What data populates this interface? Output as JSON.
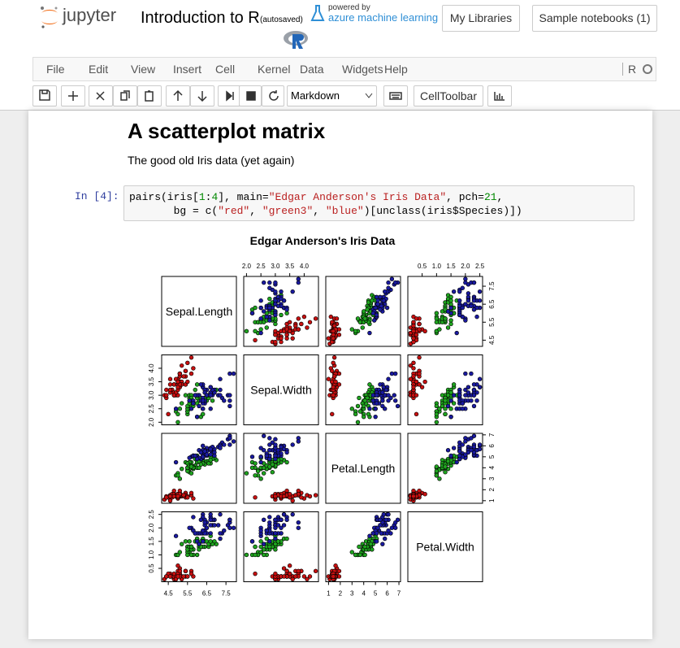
{
  "header": {
    "logo_text": "jupyter",
    "title": "Introduction to R",
    "autosaved": "(autosaved)",
    "powered_by": "powered by",
    "azure": "azure machine learning",
    "buttons": [
      "My Libraries",
      "Sample notebooks (1)"
    ]
  },
  "menu": {
    "items": [
      "File",
      "Edit",
      "View",
      "Insert",
      "Cell",
      "Kernel",
      "Data",
      "Widgets",
      "Help"
    ],
    "kernel": "R"
  },
  "toolbar": {
    "cell_type": "Markdown",
    "celltoolbar": "CellToolbar"
  },
  "cells": {
    "heading": "A scatterplot matrix",
    "text": "The good old Iris data (yet again)",
    "prompt": "In [4]:",
    "code": [
      [
        [
          "pairs(iris[",
          "plain"
        ],
        [
          "1",
          "num"
        ],
        [
          ":",
          "plain"
        ],
        [
          "4",
          "num"
        ],
        [
          "], main=",
          "plain"
        ],
        [
          "\"Edgar Anderson's Iris Data\"",
          "str"
        ],
        [
          ", pch=",
          "plain"
        ],
        [
          "21",
          "num"
        ],
        [
          ",",
          "plain"
        ]
      ],
      [
        [
          "       bg = c(",
          "plain"
        ],
        [
          "\"red\"",
          "str"
        ],
        [
          ", ",
          "plain"
        ],
        [
          "\"green3\"",
          "str"
        ],
        [
          ", ",
          "plain"
        ],
        [
          "\"blue\"",
          "str"
        ],
        [
          ")[unclass(iris$Species)])",
          "plain"
        ]
      ]
    ]
  },
  "chart_data": {
    "type": "scatter_matrix",
    "title": "Edgar Anderson's Iris Data",
    "variables": [
      {
        "name": "Sepal.Length",
        "lim": [
          4.156,
          8.044
        ],
        "ticks": [
          4.5,
          5.5,
          6.5,
          7.5
        ]
      },
      {
        "name": "Sepal.Width",
        "lim": [
          1.904,
          4.496
        ],
        "ticks": [
          {
            "value": 2,
            "label": "2.0"
          },
          2.5,
          {
            "value": 3,
            "label": "3.0"
          },
          3.5,
          {
            "value": 4,
            "label": "4.0"
          }
        ]
      },
      {
        "name": "Petal.Length",
        "lim": [
          0.764,
          7.136
        ],
        "ticks": [
          1,
          2,
          3,
          4,
          5,
          6,
          7
        ]
      },
      {
        "name": "Petal.Width",
        "lim": [
          0.004,
          2.596
        ],
        "ticks": [
          0.5,
          {
            "value": 1,
            "label": "1.0"
          },
          1.5,
          {
            "value": 2,
            "label": "2.0"
          },
          2.5
        ]
      }
    ],
    "series": [
      {
        "color": "#c81010",
        "values": [
          [
            5.1,
            3.5,
            1.4,
            0.2
          ],
          [
            4.9,
            3.0,
            1.4,
            0.2
          ],
          [
            4.7,
            3.2,
            1.3,
            0.2
          ],
          [
            4.6,
            3.1,
            1.5,
            0.2
          ],
          [
            5.0,
            3.6,
            1.4,
            0.2
          ],
          [
            5.4,
            3.9,
            1.7,
            0.4
          ],
          [
            4.6,
            3.4,
            1.4,
            0.3
          ],
          [
            5.0,
            3.4,
            1.5,
            0.2
          ],
          [
            4.4,
            2.9,
            1.4,
            0.2
          ],
          [
            4.9,
            3.1,
            1.5,
            0.1
          ],
          [
            5.4,
            3.7,
            1.5,
            0.2
          ],
          [
            4.8,
            3.4,
            1.6,
            0.2
          ],
          [
            4.8,
            3.0,
            1.4,
            0.1
          ],
          [
            4.3,
            3.0,
            1.1,
            0.1
          ],
          [
            5.8,
            4.0,
            1.2,
            0.2
          ],
          [
            5.7,
            4.4,
            1.5,
            0.4
          ],
          [
            5.4,
            3.9,
            1.3,
            0.4
          ],
          [
            5.1,
            3.5,
            1.4,
            0.3
          ],
          [
            5.7,
            3.8,
            1.7,
            0.3
          ],
          [
            5.1,
            3.8,
            1.5,
            0.3
          ],
          [
            5.4,
            3.4,
            1.7,
            0.2
          ],
          [
            5.1,
            3.7,
            1.5,
            0.4
          ],
          [
            4.6,
            3.6,
            1.0,
            0.2
          ],
          [
            5.1,
            3.3,
            1.7,
            0.5
          ],
          [
            4.8,
            3.4,
            1.9,
            0.2
          ],
          [
            5.0,
            3.0,
            1.6,
            0.2
          ],
          [
            5.0,
            3.4,
            1.6,
            0.4
          ],
          [
            5.2,
            3.5,
            1.5,
            0.2
          ],
          [
            5.2,
            3.4,
            1.4,
            0.2
          ],
          [
            4.7,
            3.2,
            1.6,
            0.2
          ],
          [
            4.8,
            3.1,
            1.6,
            0.2
          ],
          [
            5.4,
            3.4,
            1.5,
            0.4
          ],
          [
            5.2,
            4.1,
            1.5,
            0.1
          ],
          [
            5.5,
            4.2,
            1.4,
            0.2
          ],
          [
            4.9,
            3.1,
            1.5,
            0.2
          ],
          [
            5.0,
            3.2,
            1.2,
            0.2
          ],
          [
            5.5,
            3.5,
            1.3,
            0.2
          ],
          [
            4.9,
            3.6,
            1.4,
            0.1
          ],
          [
            4.4,
            3.0,
            1.3,
            0.2
          ],
          [
            5.1,
            3.4,
            1.5,
            0.2
          ],
          [
            5.0,
            3.5,
            1.3,
            0.3
          ],
          [
            4.5,
            2.3,
            1.3,
            0.3
          ],
          [
            4.4,
            3.2,
            1.3,
            0.2
          ],
          [
            5.0,
            3.5,
            1.6,
            0.6
          ],
          [
            5.1,
            3.8,
            1.9,
            0.4
          ],
          [
            4.8,
            3.0,
            1.4,
            0.3
          ],
          [
            5.1,
            3.8,
            1.6,
            0.2
          ],
          [
            4.6,
            3.2,
            1.4,
            0.2
          ],
          [
            5.3,
            3.7,
            1.5,
            0.2
          ],
          [
            5.0,
            3.3,
            1.4,
            0.2
          ]
        ]
      },
      {
        "color": "#1fa51f",
        "values": [
          [
            7.0,
            3.2,
            4.7,
            1.4
          ],
          [
            6.4,
            3.2,
            4.5,
            1.5
          ],
          [
            6.9,
            3.1,
            4.9,
            1.5
          ],
          [
            5.5,
            2.3,
            4.0,
            1.3
          ],
          [
            6.5,
            2.8,
            4.6,
            1.5
          ],
          [
            5.7,
            2.8,
            4.5,
            1.3
          ],
          [
            6.3,
            3.3,
            4.7,
            1.6
          ],
          [
            4.9,
            2.4,
            3.3,
            1.0
          ],
          [
            6.6,
            2.9,
            4.6,
            1.3
          ],
          [
            5.2,
            2.7,
            3.9,
            1.4
          ],
          [
            5.0,
            2.0,
            3.5,
            1.0
          ],
          [
            5.9,
            3.0,
            4.2,
            1.5
          ],
          [
            6.0,
            2.2,
            4.0,
            1.0
          ],
          [
            6.1,
            2.9,
            4.7,
            1.4
          ],
          [
            5.6,
            2.9,
            3.6,
            1.3
          ],
          [
            6.7,
            3.1,
            4.4,
            1.4
          ],
          [
            5.6,
            3.0,
            4.5,
            1.5
          ],
          [
            5.8,
            2.7,
            4.1,
            1.0
          ],
          [
            6.2,
            2.2,
            4.5,
            1.5
          ],
          [
            5.6,
            2.5,
            3.9,
            1.1
          ],
          [
            5.9,
            3.2,
            4.8,
            1.8
          ],
          [
            6.1,
            2.8,
            4.0,
            1.3
          ],
          [
            6.3,
            2.5,
            4.9,
            1.5
          ],
          [
            6.1,
            2.8,
            4.7,
            1.2
          ],
          [
            6.4,
            2.9,
            4.3,
            1.3
          ],
          [
            6.6,
            3.0,
            4.4,
            1.4
          ],
          [
            6.8,
            2.8,
            4.8,
            1.4
          ],
          [
            6.7,
            3.0,
            5.0,
            1.7
          ],
          [
            6.0,
            2.9,
            4.5,
            1.5
          ],
          [
            5.7,
            2.6,
            3.5,
            1.0
          ],
          [
            5.5,
            2.4,
            3.8,
            1.1
          ],
          [
            5.5,
            2.4,
            3.7,
            1.0
          ],
          [
            5.8,
            2.7,
            3.9,
            1.2
          ],
          [
            6.0,
            2.7,
            5.1,
            1.6
          ],
          [
            5.4,
            3.0,
            4.5,
            1.5
          ],
          [
            6.0,
            3.4,
            4.5,
            1.6
          ],
          [
            6.7,
            3.1,
            4.7,
            1.5
          ],
          [
            6.3,
            2.3,
            4.4,
            1.3
          ],
          [
            5.6,
            3.0,
            4.1,
            1.3
          ],
          [
            5.5,
            2.5,
            4.0,
            1.3
          ],
          [
            5.5,
            2.6,
            4.4,
            1.2
          ],
          [
            6.1,
            3.0,
            4.6,
            1.4
          ],
          [
            5.8,
            2.6,
            4.0,
            1.2
          ],
          [
            5.0,
            2.3,
            3.3,
            1.0
          ],
          [
            5.6,
            2.7,
            4.2,
            1.3
          ],
          [
            5.7,
            3.0,
            4.2,
            1.2
          ],
          [
            5.7,
            2.9,
            4.2,
            1.3
          ],
          [
            6.2,
            2.9,
            4.3,
            1.3
          ],
          [
            5.1,
            2.5,
            3.0,
            1.1
          ],
          [
            5.7,
            2.8,
            4.1,
            1.3
          ]
        ]
      },
      {
        "color": "#1a1aa0",
        "values": [
          [
            6.3,
            3.3,
            6.0,
            2.5
          ],
          [
            5.8,
            2.7,
            5.1,
            1.9
          ],
          [
            7.1,
            3.0,
            5.9,
            2.1
          ],
          [
            6.3,
            2.9,
            5.6,
            1.8
          ],
          [
            6.5,
            3.0,
            5.8,
            2.2
          ],
          [
            7.6,
            3.0,
            6.6,
            2.1
          ],
          [
            4.9,
            2.5,
            4.5,
            1.7
          ],
          [
            7.3,
            2.9,
            6.3,
            1.8
          ],
          [
            6.7,
            2.5,
            5.8,
            1.8
          ],
          [
            7.2,
            3.6,
            6.1,
            2.5
          ],
          [
            6.5,
            3.2,
            5.1,
            2.0
          ],
          [
            6.4,
            2.7,
            5.3,
            1.9
          ],
          [
            6.8,
            3.0,
            5.5,
            2.1
          ],
          [
            5.7,
            2.5,
            5.0,
            2.0
          ],
          [
            5.8,
            2.8,
            5.1,
            2.4
          ],
          [
            6.4,
            3.2,
            5.3,
            2.3
          ],
          [
            6.5,
            3.0,
            5.5,
            1.8
          ],
          [
            7.7,
            3.8,
            6.7,
            2.2
          ],
          [
            7.7,
            2.6,
            6.9,
            2.3
          ],
          [
            6.0,
            2.2,
            5.0,
            1.5
          ],
          [
            6.9,
            3.2,
            5.7,
            2.3
          ],
          [
            5.6,
            2.8,
            4.9,
            2.0
          ],
          [
            7.7,
            2.8,
            6.7,
            2.0
          ],
          [
            6.3,
            2.7,
            4.9,
            1.8
          ],
          [
            6.7,
            3.3,
            5.7,
            2.1
          ],
          [
            7.2,
            3.2,
            6.0,
            1.8
          ],
          [
            6.2,
            2.8,
            4.8,
            1.8
          ],
          [
            6.1,
            3.0,
            4.9,
            1.8
          ],
          [
            6.4,
            2.8,
            5.6,
            2.1
          ],
          [
            7.2,
            3.0,
            5.8,
            1.6
          ],
          [
            7.4,
            2.8,
            6.1,
            1.9
          ],
          [
            7.9,
            3.8,
            6.4,
            2.0
          ],
          [
            6.4,
            2.8,
            5.6,
            2.2
          ],
          [
            6.3,
            2.8,
            5.1,
            1.5
          ],
          [
            6.1,
            2.6,
            5.6,
            1.4
          ],
          [
            7.7,
            3.0,
            6.1,
            2.3
          ],
          [
            6.3,
            3.4,
            5.6,
            2.4
          ],
          [
            6.4,
            3.1,
            5.5,
            1.8
          ],
          [
            6.0,
            3.0,
            4.8,
            1.8
          ],
          [
            6.9,
            3.1,
            5.4,
            2.1
          ],
          [
            6.7,
            3.1,
            5.6,
            2.4
          ],
          [
            6.9,
            3.1,
            5.1,
            2.3
          ],
          [
            5.8,
            2.7,
            5.1,
            1.9
          ],
          [
            6.8,
            3.2,
            5.9,
            2.3
          ],
          [
            6.7,
            3.3,
            5.7,
            2.5
          ],
          [
            6.7,
            3.0,
            5.2,
            2.3
          ],
          [
            6.3,
            2.5,
            5.0,
            1.9
          ],
          [
            6.5,
            3.0,
            5.2,
            2.0
          ],
          [
            6.2,
            3.4,
            5.4,
            2.3
          ],
          [
            5.9,
            3.0,
            5.1,
            1.8
          ]
        ]
      }
    ]
  }
}
